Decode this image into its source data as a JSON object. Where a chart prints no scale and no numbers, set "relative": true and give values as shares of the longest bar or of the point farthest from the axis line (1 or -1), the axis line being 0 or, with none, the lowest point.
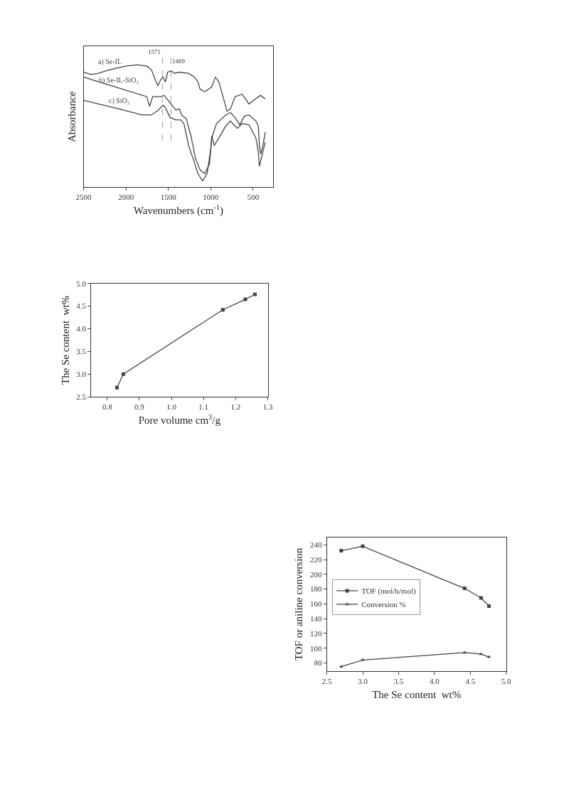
{
  "chart_data": [
    {
      "type": "line",
      "xlabel": "Wavenumbers (cm$^{-1}$)",
      "ylabel": "Absorbance",
      "relative": true,
      "xlim": [
        2500,
        262
      ],
      "xticks": [
        2500,
        2000,
        1500,
        1000,
        500
      ],
      "legend": false,
      "marker": "none",
      "line_style": "solid",
      "tick_labels": "x",
      "ref_lines": [
        {
          "axis": "x",
          "value": 1571,
          "label": "1571",
          "color": "#999999",
          "line_style": "dashed"
        },
        {
          "axis": "x",
          "value": 1469,
          "label": "1469",
          "color": "#999999",
          "line_style": "dashed"
        }
      ],
      "series": [
        {
          "name": "a) Se-IL",
          "color": "#444444",
          "x": [
            2500,
            2412,
            2330,
            2193,
            2001,
            1864,
            1755,
            1700,
            1645,
            1623,
            1590,
            1563,
            1536,
            1508,
            1467,
            1426,
            1371,
            1262,
            1193,
            1152,
            1125,
            1070,
            988,
            946,
            905,
            851,
            809,
            768,
            714,
            631,
            549,
            494,
            412,
            357
          ],
          "values": [
            0.94,
            0.92,
            0.93,
            0.96,
            0.99,
            1.0,
            0.99,
            0.96,
            0.86,
            0.83,
            0.88,
            0.9,
            0.86,
            0.94,
            0.95,
            0.93,
            0.94,
            0.93,
            0.9,
            0.86,
            0.8,
            0.78,
            0.82,
            0.9,
            0.86,
            0.73,
            0.62,
            0.64,
            0.74,
            0.76,
            0.68,
            0.71,
            0.75,
            0.72
          ]
        },
        {
          "name": "b) Se-IL-SiO₂",
          "color": "#444444",
          "x": [
            2500,
            2084,
            1755,
            1722,
            1686,
            1590,
            1549,
            1481,
            1412,
            1371,
            1344,
            1289,
            1234,
            1179,
            1125,
            1070,
            1015,
            988,
            933,
            823,
            768,
            714,
            659,
            604,
            549,
            467,
            440,
            426,
            412,
            385,
            357
          ],
          "values": [
            0.9,
            0.81,
            0.74,
            0.66,
            0.74,
            0.74,
            0.75,
            0.69,
            0.63,
            0.64,
            0.59,
            0.56,
            0.42,
            0.23,
            0.14,
            0.11,
            0.19,
            0.4,
            0.52,
            0.59,
            0.61,
            0.57,
            0.51,
            0.58,
            0.59,
            0.54,
            0.5,
            0.34,
            0.27,
            0.34,
            0.45
          ]
        },
        {
          "name": "c) SiO₂",
          "color": "#444444",
          "x": [
            2500,
            2084,
            1810,
            1700,
            1618,
            1563,
            1536,
            1481,
            1412,
            1357,
            1316,
            1262,
            1207,
            1152,
            1097,
            1043,
            1001,
            988,
            960,
            905,
            823,
            768,
            686,
            631,
            549,
            467,
            440,
            426,
            399,
            357
          ],
          "values": [
            0.71,
            0.64,
            0.59,
            0.59,
            0.63,
            0.67,
            0.65,
            0.57,
            0.55,
            0.55,
            0.52,
            0.34,
            0.23,
            0.11,
            0.05,
            0.11,
            0.31,
            0.42,
            0.34,
            0.4,
            0.5,
            0.54,
            0.48,
            0.52,
            0.51,
            0.4,
            0.29,
            0.17,
            0.25,
            0.37
          ]
        }
      ]
    },
    {
      "type": "line",
      "xlabel": "Pore volume cm$^{3}$/g",
      "ylabel": "The Se content  wt%",
      "xlim": [
        0.75,
        1.3
      ],
      "ylim": [
        2.5,
        5.0
      ],
      "xticks": [
        0.8,
        0.9,
        {
          "value": 1.0,
          "label": "1.0"
        },
        1.1,
        1.2,
        1.3
      ],
      "yticks": [
        2.5,
        {
          "value": 3.0,
          "label": "3.0"
        },
        3.5,
        {
          "value": 4.0,
          "label": "4.0"
        },
        4.5,
        {
          "value": 5.0,
          "label": "5.0"
        }
      ],
      "legend": false,
      "marker": "square",
      "line_style": "solid",
      "series": [
        {
          "color": "#444444",
          "x": [
            0.83,
            0.85,
            1.16,
            1.23,
            1.26
          ],
          "values": [
            2.7,
            3.0,
            4.42,
            4.65,
            4.76
          ]
        }
      ]
    },
    {
      "type": "line",
      "xlabel": "The Se content  wt%",
      "ylabel": "TOF or aniline conversion",
      "xlim": [
        2.5,
        5.0
      ],
      "ylim": [
        69,
        250
      ],
      "xticks": [
        2.5,
        {
          "value": 3.0,
          "label": "3.0"
        },
        3.5,
        {
          "value": 4.0,
          "label": "4.0"
        },
        4.5,
        {
          "value": 5.0,
          "label": "5.0"
        }
      ],
      "yticks": [
        80,
        100,
        120,
        140,
        160,
        180,
        200,
        220,
        240
      ],
      "legend": "left",
      "line_style": "solid",
      "x": [
        2.7,
        3.0,
        4.42,
        4.65,
        4.76
      ],
      "series": [
        {
          "name": "TOF (mol/h/mol)",
          "color": "#444444",
          "marker": "square",
          "values": [
            232,
            238,
            181,
            168,
            157
          ]
        },
        {
          "name": "Conversion %",
          "color": "#444444",
          "marker": "triangle",
          "values": [
            75,
            84,
            94,
            92,
            88
          ]
        }
      ]
    }
  ]
}
